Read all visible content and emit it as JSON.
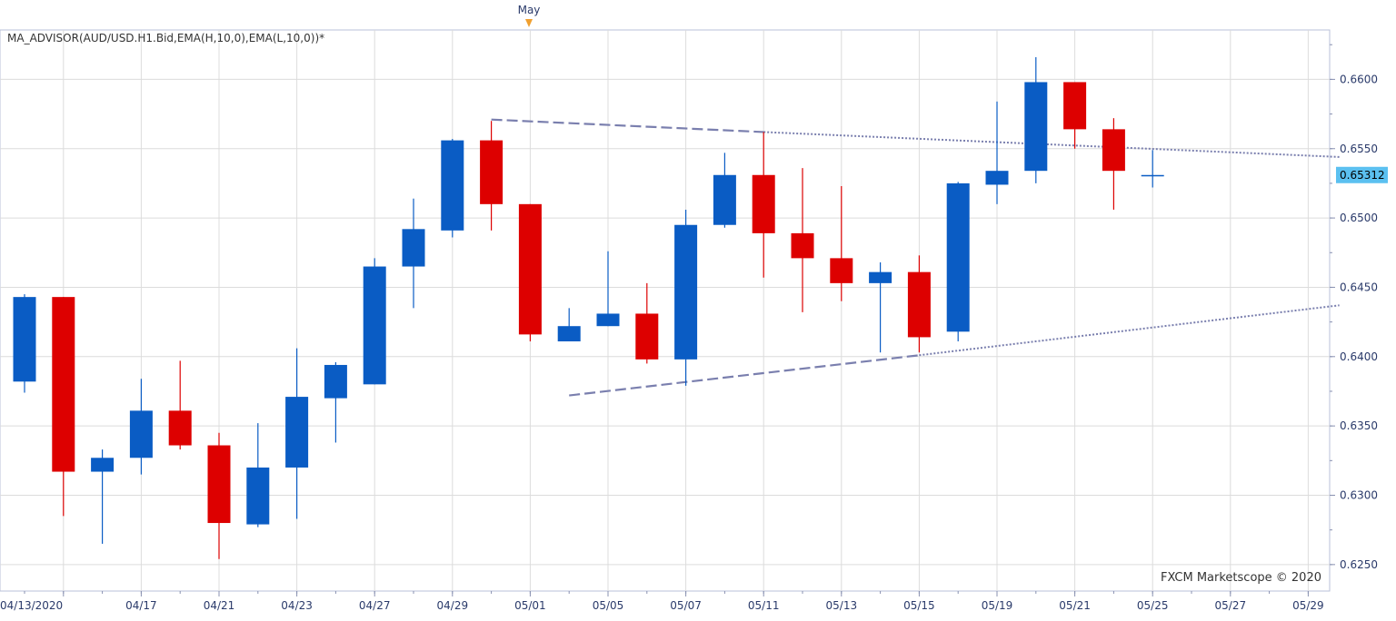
{
  "chart_data": {
    "type": "candlestick",
    "title": "MA_ADVISOR(AUD/USD.H1.Bid,EMA(H,10,0),EMA(L,10,0))*",
    "watermark": "FXCM Marketscope © 2020",
    "month_marker": "May",
    "last_price": "0.6531",
    "last_price_sup": "2",
    "ylim": [
      0.6225,
      0.6645
    ],
    "y_ticks": [
      "0.6250",
      "0.6300",
      "0.6350",
      "0.6400",
      "0.6450",
      "0.6500",
      "0.6550",
      "0.6600"
    ],
    "x_ticks": [
      "04/13/2020",
      "04/17",
      "04/21",
      "04/23",
      "04/27",
      "04/29",
      "05/01",
      "05/05",
      "05/07",
      "05/11",
      "05/13",
      "05/15",
      "05/19",
      "05/21",
      "05/25",
      "05/27",
      "05/29"
    ],
    "grid": true,
    "colors": {
      "up": "#0a5cc4",
      "down": "#dd0000",
      "trend": "#7a7fae",
      "grid": "#dcdcdc",
      "last_price_bg": "#5bc0f0",
      "marker": "#f0a030"
    },
    "candles": [
      {
        "o": 0.6382,
        "h": 0.6445,
        "l": 0.6374,
        "c": 0.6443
      },
      {
        "o": 0.6443,
        "h": 0.6443,
        "l": 0.6285,
        "c": 0.6317
      },
      {
        "o": 0.6317,
        "h": 0.6333,
        "l": 0.6265,
        "c": 0.6327
      },
      {
        "o": 0.6327,
        "h": 0.6384,
        "l": 0.6315,
        "c": 0.6361
      },
      {
        "o": 0.6361,
        "h": 0.6397,
        "l": 0.6333,
        "c": 0.6336
      },
      {
        "o": 0.6336,
        "h": 0.6345,
        "l": 0.6254,
        "c": 0.628
      },
      {
        "o": 0.6279,
        "h": 0.6352,
        "l": 0.6277,
        "c": 0.632
      },
      {
        "o": 0.632,
        "h": 0.6406,
        "l": 0.6283,
        "c": 0.6371
      },
      {
        "o": 0.637,
        "h": 0.6396,
        "l": 0.6338,
        "c": 0.6394
      },
      {
        "o": 0.638,
        "h": 0.6471,
        "l": 0.638,
        "c": 0.6465
      },
      {
        "o": 0.6465,
        "h": 0.6514,
        "l": 0.6435,
        "c": 0.6492
      },
      {
        "o": 0.6491,
        "h": 0.6557,
        "l": 0.6486,
        "c": 0.6556
      },
      {
        "o": 0.6556,
        "h": 0.657,
        "l": 0.6491,
        "c": 0.651
      },
      {
        "o": 0.651,
        "h": 0.651,
        "l": 0.6411,
        "c": 0.6416
      },
      {
        "o": 0.6411,
        "h": 0.6435,
        "l": 0.6411,
        "c": 0.6422
      },
      {
        "o": 0.6422,
        "h": 0.6476,
        "l": 0.6422,
        "c": 0.6431
      },
      {
        "o": 0.6431,
        "h": 0.6453,
        "l": 0.6395,
        "c": 0.6398
      },
      {
        "o": 0.6398,
        "h": 0.6506,
        "l": 0.6379,
        "c": 0.6495
      },
      {
        "o": 0.6495,
        "h": 0.6547,
        "l": 0.6493,
        "c": 0.6531
      },
      {
        "o": 0.6531,
        "h": 0.6562,
        "l": 0.6457,
        "c": 0.6489
      },
      {
        "o": 0.6489,
        "h": 0.6536,
        "l": 0.6432,
        "c": 0.6471
      },
      {
        "o": 0.6471,
        "h": 0.6523,
        "l": 0.644,
        "c": 0.6453
      },
      {
        "o": 0.6453,
        "h": 0.6468,
        "l": 0.6403,
        "c": 0.6461
      },
      {
        "o": 0.6461,
        "h": 0.6473,
        "l": 0.6403,
        "c": 0.6414
      },
      {
        "o": 0.6418,
        "h": 0.6526,
        "l": 0.6411,
        "c": 0.6525
      },
      {
        "o": 0.6524,
        "h": 0.6584,
        "l": 0.651,
        "c": 0.6534
      },
      {
        "o": 0.6534,
        "h": 0.6616,
        "l": 0.6525,
        "c": 0.6598
      },
      {
        "o": 0.6598,
        "h": 0.6598,
        "l": 0.655,
        "c": 0.6564
      },
      {
        "o": 0.6564,
        "h": 0.6572,
        "l": 0.6506,
        "c": 0.6534
      },
      {
        "o": 0.6531,
        "h": 0.6549,
        "l": 0.6522,
        "c": 0.6531
      }
    ],
    "trend_lines": [
      {
        "name": "upper",
        "points": [
          [
            12.0,
            0.6571
          ],
          [
            19.0,
            0.6562
          ],
          [
            33.8,
            0.6544
          ]
        ]
      },
      {
        "name": "lower",
        "points": [
          [
            14.0,
            0.6372
          ],
          [
            23.0,
            0.6401
          ],
          [
            33.8,
            0.6437
          ]
        ]
      }
    ]
  }
}
